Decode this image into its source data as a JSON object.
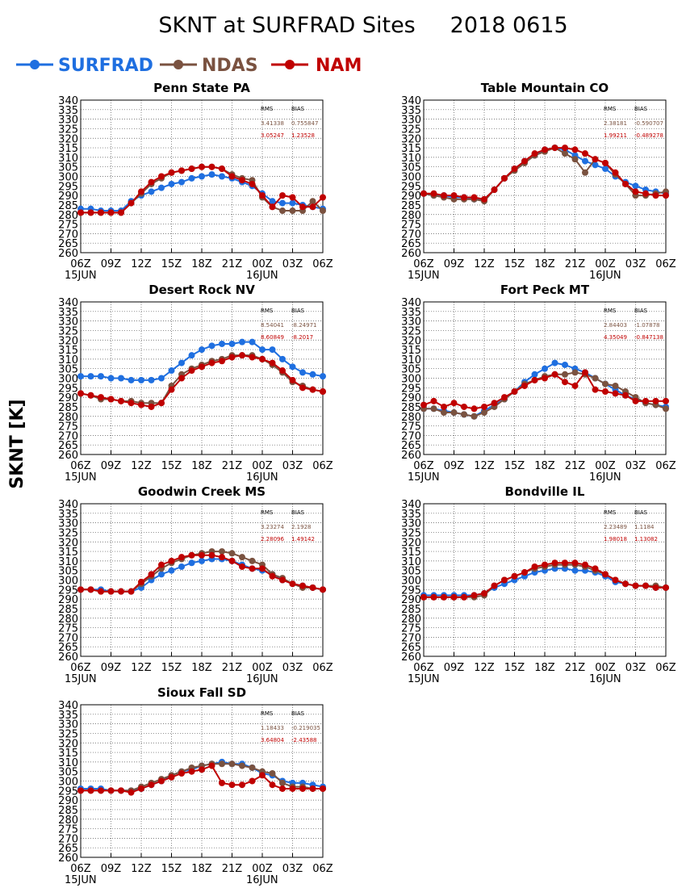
{
  "title": "SKNT at SURFRAD Sites     2018 0615",
  "ylabel": "SKNT [K]",
  "legend": [
    {
      "name": "SURFRAD",
      "color": "#1f6fe0"
    },
    {
      "name": "NDAS",
      "color": "#7a5240"
    },
    {
      "name": "NAM",
      "color": "#c00000"
    }
  ],
  "stats_headers": {
    "rms": "RMS",
    "bias": "BIAS"
  },
  "chart_data": [
    {
      "type": "line",
      "title": "Penn State PA",
      "x": [
        "06Z",
        "07Z",
        "08Z",
        "09Z",
        "10Z",
        "11Z",
        "12Z",
        "13Z",
        "14Z",
        "15Z",
        "16Z",
        "17Z",
        "18Z",
        "19Z",
        "20Z",
        "21Z",
        "22Z",
        "23Z",
        "00Z",
        "01Z",
        "02Z",
        "03Z",
        "04Z",
        "05Z",
        "06Z"
      ],
      "xticks": [
        "06Z",
        "09Z",
        "12Z",
        "15Z",
        "18Z",
        "21Z",
        "00Z",
        "03Z",
        "06Z"
      ],
      "xdates": {
        "06Z": "15JUN",
        "00Z": "16JUN"
      },
      "ylim": [
        260,
        340
      ],
      "ytick_step": 5,
      "stats": [
        {
          "rms": "3.41338",
          "bias": "0.755847",
          "color": "#7a5240"
        },
        {
          "rms": "3.05247",
          "bias": "1.23528",
          "color": "#c00000"
        }
      ],
      "series": [
        {
          "name": "SURFRAD",
          "values": [
            283,
            283,
            282,
            282,
            282,
            287,
            290,
            292,
            294,
            296,
            297,
            299,
            300,
            301,
            300,
            299,
            297,
            295,
            291,
            287,
            286,
            286,
            285,
            284,
            283
          ]
        },
        {
          "name": "NDAS",
          "values": [
            281,
            281,
            281,
            281,
            281,
            286,
            291,
            296,
            299,
            302,
            303,
            304,
            305,
            305,
            304,
            301,
            299,
            298,
            289,
            284,
            282,
            282,
            282,
            287,
            282
          ]
        },
        {
          "name": "NAM",
          "values": [
            281,
            281,
            281,
            281,
            281,
            286,
            292,
            297,
            300,
            302,
            303,
            304,
            305,
            305,
            304,
            300,
            298,
            296,
            290,
            284,
            290,
            289,
            284,
            284,
            289
          ]
        }
      ]
    },
    {
      "type": "line",
      "title": "Table Mountain CO",
      "x": [
        "06Z",
        "07Z",
        "08Z",
        "09Z",
        "10Z",
        "11Z",
        "12Z",
        "13Z",
        "14Z",
        "15Z",
        "16Z",
        "17Z",
        "18Z",
        "19Z",
        "20Z",
        "21Z",
        "22Z",
        "23Z",
        "00Z",
        "01Z",
        "02Z",
        "03Z",
        "04Z",
        "05Z",
        "06Z"
      ],
      "xticks": [
        "06Z",
        "09Z",
        "12Z",
        "15Z",
        "18Z",
        "21Z",
        "00Z",
        "03Z",
        "06Z"
      ],
      "xdates": {
        "06Z": "15JUN",
        "00Z": "16JUN"
      },
      "ylim": [
        260,
        340
      ],
      "ytick_step": 5,
      "stats": [
        {
          "rms": "2.38181",
          "bias": "-0.590707",
          "color": "#7a5240"
        },
        {
          "rms": "1.99211",
          "bias": "-0.489278",
          "color": "#c00000"
        }
      ],
      "series": [
        {
          "name": "SURFRAD",
          "values": [
            291,
            290,
            290,
            289,
            289,
            288,
            288,
            293,
            299,
            304,
            308,
            311,
            314,
            315,
            314,
            311,
            308,
            306,
            304,
            300,
            297,
            295,
            293,
            292,
            291
          ]
        },
        {
          "name": "NDAS",
          "values": [
            291,
            290,
            289,
            288,
            288,
            288,
            287,
            293,
            299,
            303,
            307,
            311,
            313,
            315,
            312,
            309,
            302,
            309,
            307,
            301,
            296,
            290,
            290,
            291,
            292
          ]
        },
        {
          "name": "NAM",
          "values": [
            291,
            291,
            290,
            290,
            289,
            289,
            288,
            293,
            299,
            304,
            308,
            312,
            314,
            315,
            315,
            314,
            312,
            309,
            307,
            302,
            296,
            292,
            291,
            290,
            290
          ]
        }
      ]
    },
    {
      "type": "line",
      "title": "Desert Rock NV",
      "x": [
        "06Z",
        "07Z",
        "08Z",
        "09Z",
        "10Z",
        "11Z",
        "12Z",
        "13Z",
        "14Z",
        "15Z",
        "16Z",
        "17Z",
        "18Z",
        "19Z",
        "20Z",
        "21Z",
        "22Z",
        "23Z",
        "00Z",
        "01Z",
        "02Z",
        "03Z",
        "04Z",
        "05Z",
        "06Z"
      ],
      "xticks": [
        "06Z",
        "09Z",
        "12Z",
        "15Z",
        "18Z",
        "21Z",
        "00Z",
        "03Z",
        "06Z"
      ],
      "xdates": {
        "06Z": "15JUN",
        "00Z": "16JUN"
      },
      "ylim": [
        260,
        340
      ],
      "ytick_step": 5,
      "stats": [
        {
          "rms": "8.54041",
          "bias": "-8.24971",
          "color": "#7a5240"
        },
        {
          "rms": "8.60849",
          "bias": "-8.2017",
          "color": "#c00000"
        }
      ],
      "series": [
        {
          "name": "SURFRAD",
          "values": [
            301,
            301,
            301,
            300,
            300,
            299,
            299,
            299,
            300,
            304,
            308,
            312,
            315,
            317,
            318,
            318,
            319,
            319,
            315,
            315,
            310,
            306,
            303,
            302,
            301
          ]
        },
        {
          "name": "NDAS",
          "values": [
            292,
            291,
            289,
            289,
            288,
            288,
            287,
            287,
            287,
            296,
            302,
            305,
            307,
            309,
            310,
            312,
            312,
            312,
            310,
            307,
            303,
            298,
            296,
            294,
            293
          ]
        },
        {
          "name": "NAM",
          "values": [
            292,
            291,
            290,
            289,
            288,
            287,
            286,
            285,
            287,
            294,
            300,
            304,
            306,
            308,
            309,
            311,
            312,
            311,
            310,
            308,
            304,
            299,
            295,
            294,
            293
          ]
        }
      ]
    },
    {
      "type": "line",
      "title": "Fort Peck MT",
      "x": [
        "06Z",
        "07Z",
        "08Z",
        "09Z",
        "10Z",
        "11Z",
        "12Z",
        "13Z",
        "14Z",
        "15Z",
        "16Z",
        "17Z",
        "18Z",
        "19Z",
        "20Z",
        "21Z",
        "22Z",
        "23Z",
        "00Z",
        "01Z",
        "02Z",
        "03Z",
        "04Z",
        "05Z",
        "06Z"
      ],
      "xticks": [
        "06Z",
        "09Z",
        "12Z",
        "15Z",
        "18Z",
        "21Z",
        "00Z",
        "03Z",
        "06Z"
      ],
      "xdates": {
        "06Z": "15JUN",
        "00Z": "16JUN"
      },
      "ylim": [
        260,
        340
      ],
      "ytick_step": 5,
      "stats": [
        {
          "rms": "2.84403",
          "bias": "-1.07878",
          "color": "#7a5240"
        },
        {
          "rms": "4.35049",
          "bias": "-0.847138",
          "color": "#c00000"
        }
      ],
      "series": [
        {
          "name": "SURFRAD",
          "values": [
            284,
            284,
            283,
            282,
            281,
            280,
            283,
            286,
            289,
            293,
            298,
            302,
            305,
            308,
            307,
            305,
            303,
            300,
            297,
            294,
            291,
            289,
            287,
            286,
            285
          ]
        },
        {
          "name": "NDAS",
          "values": [
            284,
            284,
            282,
            282,
            281,
            280,
            282,
            285,
            289,
            293,
            297,
            299,
            301,
            302,
            302,
            303,
            302,
            300,
            297,
            296,
            293,
            290,
            287,
            286,
            284
          ]
        },
        {
          "name": "NAM",
          "values": [
            286,
            288,
            285,
            287,
            285,
            284,
            285,
            287,
            290,
            293,
            296,
            299,
            300,
            302,
            298,
            296,
            303,
            294,
            293,
            292,
            291,
            288,
            288,
            288,
            288
          ]
        }
      ]
    },
    {
      "type": "line",
      "title": "Goodwin Creek MS",
      "x": [
        "06Z",
        "07Z",
        "08Z",
        "09Z",
        "10Z",
        "11Z",
        "12Z",
        "13Z",
        "14Z",
        "15Z",
        "16Z",
        "17Z",
        "18Z",
        "19Z",
        "20Z",
        "21Z",
        "22Z",
        "23Z",
        "00Z",
        "01Z",
        "02Z",
        "03Z",
        "04Z",
        "05Z",
        "06Z"
      ],
      "xticks": [
        "06Z",
        "09Z",
        "12Z",
        "15Z",
        "18Z",
        "21Z",
        "00Z",
        "03Z",
        "06Z"
      ],
      "xdates": {
        "06Z": "15JUN",
        "00Z": "16JUN"
      },
      "ylim": [
        260,
        340
      ],
      "ytick_step": 5,
      "stats": [
        {
          "rms": "3.23274",
          "bias": "2.1928",
          "color": "#7a5240"
        },
        {
          "rms": "2.28096",
          "bias": "1.49142",
          "color": "#c00000"
        }
      ],
      "series": [
        {
          "name": "SURFRAD",
          "values": [
            295,
            295,
            295,
            294,
            294,
            294,
            296,
            300,
            303,
            305,
            307,
            309,
            310,
            311,
            311,
            310,
            308,
            306,
            305,
            303,
            300,
            298,
            297,
            296,
            295
          ]
        },
        {
          "name": "NDAS",
          "values": [
            295,
            295,
            294,
            294,
            294,
            294,
            298,
            302,
            306,
            309,
            311,
            313,
            314,
            315,
            315,
            314,
            312,
            310,
            308,
            303,
            301,
            298,
            296,
            296,
            295
          ]
        },
        {
          "name": "NAM",
          "values": [
            295,
            295,
            294,
            294,
            294,
            294,
            299,
            303,
            308,
            310,
            312,
            313,
            313,
            313,
            312,
            310,
            307,
            306,
            306,
            302,
            300,
            298,
            297,
            296,
            295
          ]
        }
      ]
    },
    {
      "type": "line",
      "title": "Bondville IL",
      "x": [
        "06Z",
        "07Z",
        "08Z",
        "09Z",
        "10Z",
        "11Z",
        "12Z",
        "13Z",
        "14Z",
        "15Z",
        "16Z",
        "17Z",
        "18Z",
        "19Z",
        "20Z",
        "21Z",
        "22Z",
        "23Z",
        "00Z",
        "01Z",
        "02Z",
        "03Z",
        "04Z",
        "05Z",
        "06Z"
      ],
      "xticks": [
        "06Z",
        "09Z",
        "12Z",
        "15Z",
        "18Z",
        "21Z",
        "00Z",
        "03Z",
        "06Z"
      ],
      "xdates": {
        "06Z": "15JUN",
        "00Z": "16JUN"
      },
      "ylim": [
        260,
        340
      ],
      "ytick_step": 5,
      "stats": [
        {
          "rms": "2.23489",
          "bias": "1.1184",
          "color": "#7a5240"
        },
        {
          "rms": "1.98018",
          "bias": "1.13082",
          "color": "#c00000"
        }
      ],
      "series": [
        {
          "name": "SURFRAD",
          "values": [
            292,
            292,
            292,
            292,
            292,
            292,
            293,
            296,
            298,
            300,
            302,
            304,
            305,
            306,
            306,
            305,
            305,
            304,
            302,
            299,
            298,
            297,
            297,
            296,
            296
          ]
        },
        {
          "name": "NDAS",
          "values": [
            291,
            291,
            291,
            291,
            291,
            291,
            292,
            297,
            300,
            302,
            304,
            306,
            307,
            308,
            308,
            308,
            307,
            305,
            303,
            300,
            298,
            297,
            297,
            297,
            296
          ]
        },
        {
          "name": "NAM",
          "values": [
            291,
            291,
            291,
            291,
            291,
            292,
            293,
            297,
            300,
            302,
            304,
            307,
            308,
            309,
            309,
            309,
            308,
            306,
            303,
            300,
            298,
            297,
            297,
            296,
            296
          ]
        }
      ]
    },
    {
      "type": "line",
      "title": "Sioux Fall SD",
      "x": [
        "06Z",
        "07Z",
        "08Z",
        "09Z",
        "10Z",
        "11Z",
        "12Z",
        "13Z",
        "14Z",
        "15Z",
        "16Z",
        "17Z",
        "18Z",
        "19Z",
        "20Z",
        "21Z",
        "22Z",
        "23Z",
        "00Z",
        "01Z",
        "02Z",
        "03Z",
        "04Z",
        "05Z",
        "06Z"
      ],
      "xticks": [
        "06Z",
        "09Z",
        "12Z",
        "15Z",
        "18Z",
        "21Z",
        "00Z",
        "03Z",
        "06Z"
      ],
      "xdates": {
        "06Z": "15JUN",
        "00Z": "16JUN"
      },
      "ylim": [
        260,
        340
      ],
      "ytick_step": 5,
      "stats": [
        {
          "rms": "1.18433",
          "bias": "-0.219035",
          "color": "#7a5240"
        },
        {
          "rms": "3.64804",
          "bias": "-2.43588",
          "color": "#c00000"
        }
      ],
      "series": [
        {
          "name": "SURFRAD",
          "values": [
            296,
            296,
            296,
            295,
            295,
            295,
            296,
            298,
            300,
            303,
            305,
            306,
            308,
            309,
            310,
            309,
            309,
            307,
            304,
            303,
            300,
            299,
            299,
            298,
            297
          ]
        },
        {
          "name": "NDAS",
          "values": [
            295,
            295,
            295,
            295,
            295,
            295,
            297,
            299,
            301,
            303,
            305,
            307,
            308,
            309,
            309,
            309,
            308,
            307,
            305,
            304,
            299,
            297,
            297,
            296,
            296
          ]
        },
        {
          "name": "NAM",
          "values": [
            295,
            295,
            295,
            295,
            295,
            294,
            296,
            298,
            300,
            302,
            304,
            305,
            306,
            308,
            299,
            298,
            298,
            300,
            303,
            298,
            296,
            296,
            296,
            296,
            296
          ]
        }
      ]
    }
  ]
}
